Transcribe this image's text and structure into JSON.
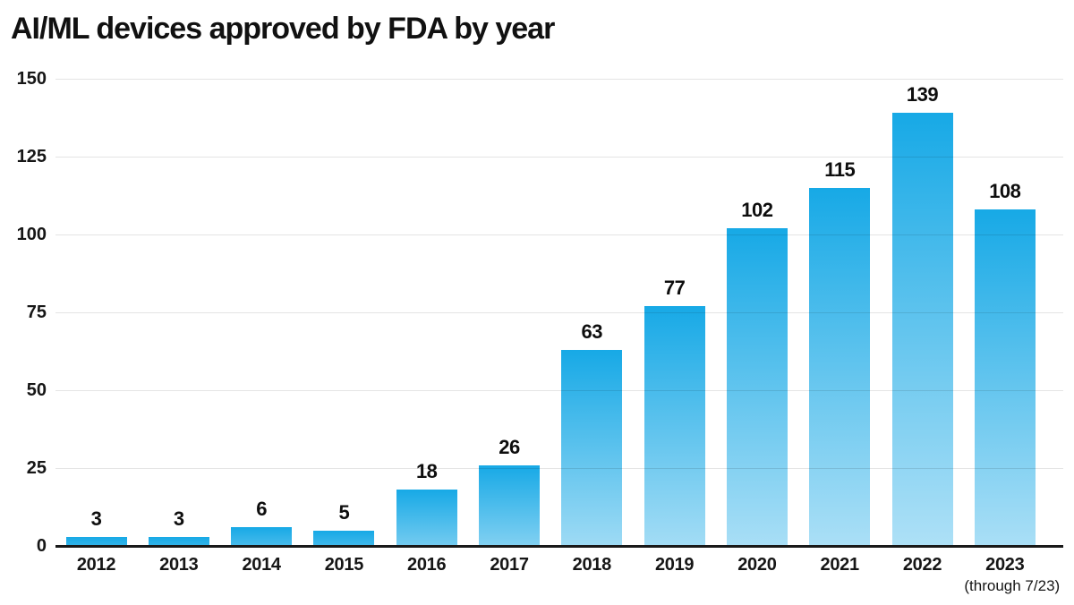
{
  "title": "AI/ML devices approved by FDA by year",
  "colors": {
    "bar_gradient_top": "#17A9E6",
    "bar_gradient_bottom": "#BDE6F8",
    "gridline": "#e0e0e0",
    "axis": "#191919",
    "text": "#111111"
  },
  "chart_data": {
    "type": "bar",
    "title": "AI/ML devices approved by FDA by year",
    "categories": [
      "2012",
      "2013",
      "2014",
      "2015",
      "2016",
      "2017",
      "2018",
      "2019",
      "2020",
      "2021",
      "2022",
      "2023"
    ],
    "values": [
      3,
      3,
      6,
      5,
      18,
      26,
      63,
      77,
      102,
      115,
      139,
      108
    ],
    "data_labels": [
      3,
      3,
      6,
      5,
      18,
      26,
      63,
      77,
      102,
      115,
      139,
      108
    ],
    "last_category_note": "(through 7/23)",
    "xlabel": "",
    "ylabel": "",
    "ylim": [
      0,
      150
    ],
    "yticks": [
      0,
      25,
      50,
      75,
      100,
      125,
      150
    ],
    "grid": true,
    "legend": false
  }
}
